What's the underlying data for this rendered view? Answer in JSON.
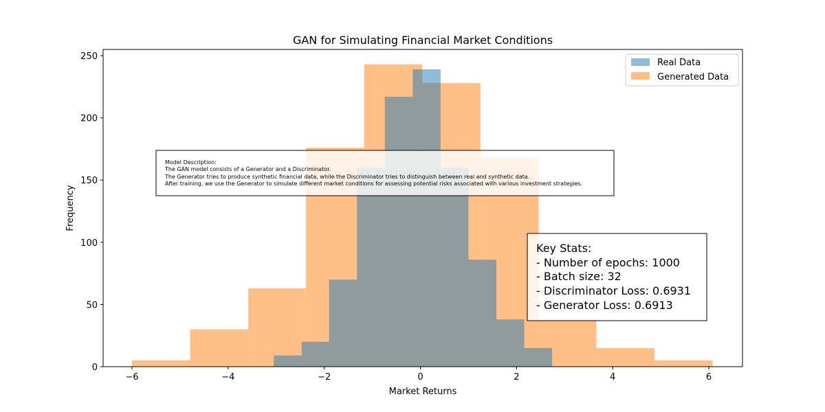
{
  "chart_data": {
    "type": "histogram",
    "title": "GAN for Simulating Financial Market Conditions",
    "xlabel": "Market Returns",
    "ylabel": "Frequency",
    "xlim": [
      -6.6,
      6.7
    ],
    "ylim": [
      0,
      255
    ],
    "x_ticks": [
      -6,
      -4,
      -2,
      0,
      2,
      4,
      6
    ],
    "x_tick_labels": [
      "−6",
      "−4",
      "−2",
      "0",
      "2",
      "4",
      "6"
    ],
    "y_ticks": [
      0,
      50,
      100,
      150,
      200,
      250
    ],
    "y_tick_labels": [
      "0",
      "50",
      "100",
      "150",
      "200",
      "250"
    ],
    "legend_position": "top-right",
    "series": [
      {
        "name": "Real Data",
        "label": "Real Data",
        "color": "#1f77b4",
        "alpha": 0.5,
        "bin_edges": [
          -3.05,
          -2.47,
          -1.9,
          -1.32,
          -0.74,
          -0.16,
          0.42,
          1.0,
          1.58,
          2.16,
          2.74
        ],
        "counts": [
          9,
          20,
          70,
          160,
          217,
          239,
          160,
          86,
          38,
          15
        ]
      },
      {
        "name": "Generated Data",
        "label": "Generated Data",
        "color": "#ff7f0e",
        "alpha": 0.5,
        "bin_edges": [
          -6.0,
          -4.79,
          -3.58,
          -2.38,
          -1.17,
          0.04,
          1.25,
          2.46,
          3.66,
          4.87,
          6.08
        ],
        "counts": [
          5,
          30,
          63,
          176,
          243,
          228,
          168,
          38,
          15,
          5
        ]
      }
    ],
    "annotations": {
      "description_lines": [
        "Model Description:",
        "The GAN model consists of a Generator and a Discriminator.",
        "The Generator tries to produce synthetic financial data, while the Discriminator tries to distinguish between real and synthetic data.",
        "After training, we use the Generator to simulate different market conditions for assessing potential risks associated with various investment strategies."
      ],
      "stats_lines": [
        "Key Stats:",
        "- Number of epochs: 1000",
        "- Batch size: 32",
        "- Discriminator Loss: 0.6931",
        "- Generator Loss: 0.6913"
      ]
    }
  }
}
